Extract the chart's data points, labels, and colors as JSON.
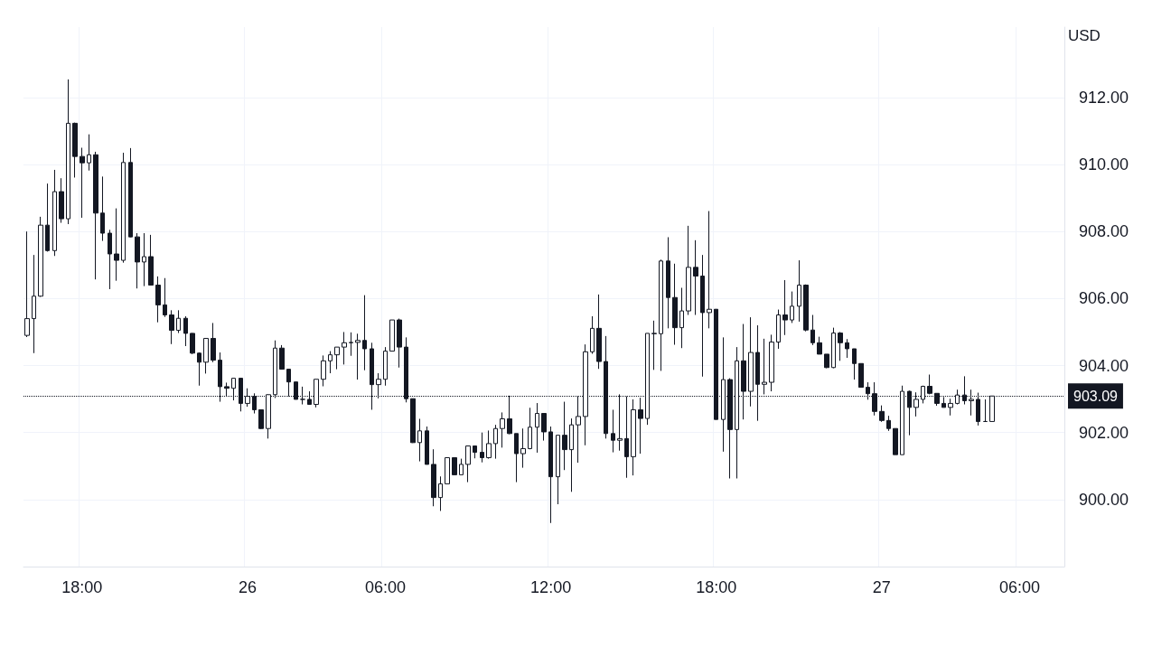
{
  "chart_data": {
    "type": "candlestick",
    "ylabel": "USD",
    "color": "#131722",
    "categories": [
      null,
      null,
      null,
      null,
      null,
      null,
      null,
      null,
      "18:00",
      null,
      null,
      null,
      null,
      null,
      null,
      null,
      null,
      null,
      null,
      null,
      null,
      null,
      null,
      null,
      null,
      null,
      null,
      null,
      null,
      null,
      null,
      null,
      "26",
      null,
      null,
      null,
      null,
      null,
      null,
      null,
      null,
      null,
      null,
      null,
      null,
      null,
      null,
      null,
      null,
      null,
      null,
      null,
      "06:00",
      null,
      null,
      null,
      null,
      null,
      null,
      null,
      null,
      null,
      null,
      null,
      null,
      null,
      null,
      null,
      null,
      null,
      null,
      null,
      null,
      null,
      null,
      null,
      "12:00",
      null,
      null,
      null,
      null,
      null,
      null,
      null,
      null,
      null,
      null,
      null,
      null,
      null,
      null,
      null,
      null,
      null,
      null,
      null,
      null,
      null,
      null,
      null,
      "18:00",
      null,
      null,
      null,
      null,
      null,
      null,
      null,
      null,
      null,
      null,
      null,
      null,
      null,
      null,
      null,
      null,
      null,
      null,
      null,
      null,
      null,
      null,
      null,
      "27",
      null,
      null,
      null,
      null,
      null,
      null,
      null,
      null,
      null,
      null,
      null,
      null,
      null,
      null,
      null,
      null,
      null,
      null,
      null,
      "06:00",
      null,
      null,
      null,
      null,
      null,
      null
    ],
    "ohlc": [
      [
        904.9,
        908.0,
        904.85,
        905.4
      ],
      [
        905.4,
        907.3,
        904.37,
        906.07
      ],
      [
        906.07,
        908.44,
        906.05,
        908.19
      ],
      [
        908.19,
        909.43,
        907.4,
        907.43
      ],
      [
        907.43,
        909.84,
        907.27,
        909.19
      ],
      [
        909.19,
        909.59,
        908.26,
        908.38
      ],
      [
        908.38,
        912.54,
        908.22,
        911.23
      ],
      [
        911.23,
        911.25,
        909.61,
        910.24
      ],
      [
        910.24,
        910.5,
        908.41,
        910.05
      ],
      [
        910.05,
        910.9,
        909.82,
        910.29
      ],
      [
        910.29,
        910.38,
        906.57,
        908.55
      ],
      [
        908.55,
        909.64,
        907.72,
        907.95
      ],
      [
        907.95,
        908.05,
        906.28,
        907.33
      ],
      [
        907.33,
        908.69,
        906.53,
        907.14
      ],
      [
        907.14,
        910.35,
        907.07,
        910.06
      ],
      [
        910.06,
        910.49,
        907.83,
        907.84
      ],
      [
        907.84,
        907.95,
        906.3,
        907.09
      ],
      [
        907.09,
        907.95,
        906.37,
        907.25
      ],
      [
        907.25,
        907.9,
        906.39,
        906.4
      ],
      [
        906.4,
        906.66,
        905.29,
        905.81
      ],
      [
        905.81,
        906.61,
        905.45,
        905.51
      ],
      [
        905.51,
        905.65,
        904.64,
        905.05
      ],
      [
        905.05,
        905.65,
        904.97,
        905.41
      ],
      [
        905.41,
        905.47,
        904.58,
        904.96
      ],
      [
        904.96,
        904.97,
        904.34,
        904.37
      ],
      [
        904.37,
        904.39,
        903.4,
        904.1
      ],
      [
        904.1,
        904.82,
        903.76,
        904.81
      ],
      [
        904.81,
        905.27,
        904.1,
        904.16
      ],
      [
        904.16,
        904.39,
        902.92,
        903.37
      ],
      [
        903.37,
        903.49,
        903.08,
        903.32
      ],
      [
        903.32,
        903.62,
        902.96,
        903.62
      ],
      [
        903.62,
        903.62,
        902.63,
        902.87
      ],
      [
        902.87,
        903.32,
        902.77,
        903.08
      ],
      [
        903.08,
        903.17,
        902.57,
        902.68
      ],
      [
        902.68,
        902.68,
        902.11,
        902.12
      ],
      [
        902.12,
        903.14,
        901.82,
        903.13
      ],
      [
        903.13,
        904.75,
        903.03,
        904.52
      ],
      [
        904.52,
        904.61,
        903.88,
        903.89
      ],
      [
        903.89,
        903.89,
        903.08,
        903.51
      ],
      [
        903.51,
        903.51,
        902.99,
        902.99
      ],
      [
        902.99,
        903.37,
        902.84,
        902.99
      ],
      [
        902.99,
        903.23,
        902.84,
        902.84
      ],
      [
        902.84,
        903.59,
        902.75,
        903.59
      ],
      [
        903.59,
        904.3,
        903.38,
        904.14
      ],
      [
        904.14,
        904.43,
        903.77,
        904.32
      ],
      [
        904.32,
        904.55,
        903.89,
        904.55
      ],
      [
        904.55,
        905.0,
        904.03,
        904.68
      ],
      [
        904.68,
        904.99,
        904.29,
        904.69
      ],
      [
        904.69,
        904.95,
        903.58,
        904.75
      ],
      [
        904.75,
        906.1,
        903.86,
        904.5
      ],
      [
        904.5,
        904.68,
        902.68,
        903.43
      ],
      [
        903.43,
        903.77,
        903.02,
        903.59
      ],
      [
        903.59,
        904.55,
        903.4,
        904.43
      ],
      [
        904.43,
        905.36,
        904.43,
        905.36
      ],
      [
        905.36,
        905.4,
        903.94,
        904.55
      ],
      [
        904.55,
        904.84,
        902.9,
        903.01
      ],
      [
        903.01,
        903.01,
        901.69,
        901.7
      ],
      [
        901.7,
        902.41,
        901.14,
        902.05
      ],
      [
        902.05,
        902.18,
        901.05,
        901.05
      ],
      [
        901.05,
        901.5,
        899.8,
        900.06
      ],
      [
        900.06,
        900.69,
        899.66,
        900.47
      ],
      [
        900.47,
        901.25,
        900.47,
        901.25
      ],
      [
        901.25,
        901.25,
        900.74,
        900.74
      ],
      [
        900.74,
        901.22,
        900.74,
        901.05
      ],
      [
        901.05,
        901.6,
        900.52,
        901.6
      ],
      [
        901.6,
        901.6,
        901.23,
        901.41
      ],
      [
        901.41,
        902.0,
        901.11,
        901.25
      ],
      [
        901.25,
        902.06,
        901.22,
        901.67
      ],
      [
        901.67,
        902.23,
        901.22,
        902.12
      ],
      [
        902.12,
        902.6,
        901.55,
        902.41
      ],
      [
        902.41,
        903.1,
        901.95,
        901.97
      ],
      [
        901.97,
        901.97,
        900.52,
        901.37
      ],
      [
        901.37,
        902.12,
        900.95,
        901.52
      ],
      [
        901.52,
        902.74,
        901.5,
        902.16
      ],
      [
        902.16,
        902.88,
        901.4,
        902.57
      ],
      [
        902.57,
        902.57,
        901.76,
        902.02
      ],
      [
        902.02,
        902.18,
        899.3,
        900.68
      ],
      [
        900.68,
        901.92,
        899.86,
        901.92
      ],
      [
        901.92,
        902.92,
        900.88,
        901.49
      ],
      [
        901.49,
        902.42,
        900.23,
        902.23
      ],
      [
        902.23,
        903.08,
        901.1,
        902.48
      ],
      [
        902.48,
        904.63,
        901.62,
        904.41
      ],
      [
        904.41,
        905.47,
        904.35,
        905.11
      ],
      [
        905.11,
        906.12,
        903.9,
        904.12
      ],
      [
        904.12,
        904.88,
        901.82,
        901.97
      ],
      [
        901.97,
        902.68,
        901.41,
        901.77
      ],
      [
        901.77,
        903.14,
        901.46,
        901.82
      ],
      [
        901.82,
        903.08,
        900.65,
        901.28
      ],
      [
        901.28,
        902.99,
        900.72,
        902.68
      ],
      [
        902.68,
        903.04,
        901.37,
        902.42
      ],
      [
        902.42,
        904.96,
        902.23,
        904.96
      ],
      [
        904.96,
        905.34,
        903.87,
        904.95
      ],
      [
        904.95,
        907.16,
        903.84,
        907.12
      ],
      [
        907.12,
        907.83,
        905.11,
        906.03
      ],
      [
        906.03,
        907.04,
        904.62,
        905.13
      ],
      [
        905.13,
        906.32,
        904.52,
        905.63
      ],
      [
        905.63,
        908.17,
        905.51,
        906.93
      ],
      [
        906.93,
        907.74,
        905.51,
        906.67
      ],
      [
        906.67,
        907.3,
        903.67,
        905.58
      ],
      [
        905.58,
        908.61,
        905.11,
        905.68
      ],
      [
        905.68,
        905.68,
        902.39,
        902.39
      ],
      [
        902.39,
        904.84,
        901.43,
        903.58
      ],
      [
        903.58,
        903.62,
        900.63,
        902.09
      ],
      [
        902.09,
        904.55,
        900.63,
        904.14
      ],
      [
        904.14,
        905.24,
        902.39,
        903.23
      ],
      [
        903.23,
        905.44,
        902.78,
        904.39
      ],
      [
        904.39,
        905.2,
        902.35,
        903.44
      ],
      [
        903.44,
        904.8,
        903.14,
        903.5
      ],
      [
        903.5,
        904.92,
        903.23,
        904.7
      ],
      [
        904.7,
        905.67,
        904.5,
        905.51
      ],
      [
        905.51,
        906.55,
        904.91,
        905.36
      ],
      [
        905.36,
        906.21,
        905.27,
        905.77
      ],
      [
        905.77,
        907.14,
        905.31,
        906.4
      ],
      [
        906.4,
        906.42,
        905.02,
        905.06
      ],
      [
        905.06,
        905.51,
        904.61,
        904.68
      ],
      [
        904.68,
        904.86,
        904.34,
        904.34
      ],
      [
        904.34,
        904.34,
        903.92,
        903.94
      ],
      [
        903.94,
        905.13,
        903.92,
        904.97
      ],
      [
        904.97,
        905.0,
        904.14,
        904.68
      ],
      [
        904.68,
        904.79,
        904.23,
        904.5
      ],
      [
        904.5,
        904.5,
        903.58,
        904.06
      ],
      [
        904.06,
        904.06,
        903.35,
        903.35
      ],
      [
        903.35,
        903.5,
        902.98,
        903.16
      ],
      [
        903.16,
        903.5,
        902.51,
        902.63
      ],
      [
        902.63,
        902.81,
        902.32,
        902.36
      ],
      [
        902.36,
        902.5,
        902.05,
        902.12
      ],
      [
        902.12,
        902.12,
        901.34,
        901.34
      ],
      [
        901.34,
        903.4,
        901.34,
        903.23
      ],
      [
        903.23,
        903.25,
        901.92,
        902.75
      ],
      [
        902.75,
        903.2,
        902.48,
        902.99
      ],
      [
        902.99,
        903.4,
        902.87,
        903.38
      ],
      [
        903.38,
        903.73,
        903.14,
        903.17
      ],
      [
        903.17,
        903.17,
        902.8,
        902.87
      ],
      [
        902.87,
        903.06,
        902.75,
        902.75
      ],
      [
        902.75,
        903.01,
        902.51,
        902.87
      ],
      [
        902.87,
        903.28,
        902.84,
        903.12
      ],
      [
        903.12,
        903.68,
        902.84,
        902.95
      ],
      [
        902.95,
        903.28,
        902.51,
        902.99
      ],
      [
        902.99,
        903.19,
        902.21,
        902.33
      ],
      [
        902.33,
        902.99,
        902.32,
        902.33
      ],
      [
        902.33,
        903.09,
        902.33,
        903.09
      ],
      null,
      null,
      null,
      null,
      null,
      null,
      null,
      null,
      null,
      null
    ],
    "ylim": [
      898,
      914.1
    ],
    "yticks": [
      {
        "value": 900,
        "label": "900.00"
      },
      {
        "value": 902,
        "label": "902.00"
      },
      {
        "value": 904,
        "label": "904.00"
      },
      {
        "value": 906,
        "label": "906.00"
      },
      {
        "value": 908,
        "label": "908.00"
      },
      {
        "value": 910,
        "label": "910.00"
      },
      {
        "value": 912,
        "label": "912.00"
      }
    ],
    "ref_lines": [
      {
        "axis": "y",
        "value": 903.09,
        "label": "903.09",
        "color": "#131722",
        "line_style": "dotted"
      }
    ],
    "grid": true
  }
}
